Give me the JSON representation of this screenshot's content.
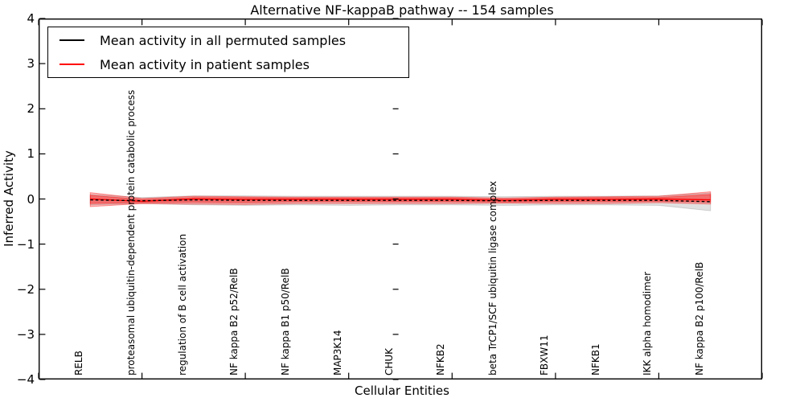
{
  "figure": {
    "title": "Alternative NF-kappaB pathway -- 154 samples",
    "xlabel": "Cellular Entities",
    "ylabel": "Inferred Activity"
  },
  "legend": {
    "items": [
      {
        "label": "Mean activity in all permuted samples",
        "color": "#000000"
      },
      {
        "label": "Mean activity in patient samples",
        "color": "#ff0000"
      }
    ]
  },
  "chart_data": {
    "type": "line",
    "title": "Alternative NF-kappaB pathway -- 154 samples",
    "xlabel": "Cellular Entities",
    "ylabel": "Inferred Activity",
    "xlim": [
      0,
      14
    ],
    "ylim": [
      -4,
      4
    ],
    "grid": false,
    "legend_position": "upper left",
    "y_tick_values": [
      4,
      3,
      2,
      1,
      0,
      -1,
      -2,
      -3,
      -4
    ],
    "y_tick_labels": [
      "4",
      "3",
      "2",
      "1",
      "0",
      "−1",
      "−2",
      "−3",
      "−4"
    ],
    "x_tick_positions": [
      0,
      2,
      4,
      6,
      8,
      10,
      12,
      14
    ],
    "x": [
      1,
      2,
      3,
      4,
      5,
      6,
      7,
      8,
      9,
      10,
      11,
      12,
      13
    ],
    "categories": [
      "RELB",
      "proteasomal ubiquitin-dependent protein catabolic process",
      "regulation of B cell activation",
      "NF kappa B2 p52/RelB",
      "NF kappa B1 p50/RelB",
      "MAP3K14",
      "CHUK",
      "NFKB2",
      "beta TrCP1/SCF ubiquitin ligase complex",
      "FBXW11",
      "NFKB1",
      "IKK alpha homodimer",
      "NF kappa B2 p100/RelB"
    ],
    "series": [
      {
        "name": "Mean activity in all permuted samples",
        "color": "#000000",
        "style": "dashed",
        "values": [
          -0.02,
          -0.04,
          -0.02,
          -0.03,
          -0.03,
          -0.03,
          -0.03,
          -0.03,
          -0.04,
          -0.03,
          -0.03,
          -0.03,
          -0.06
        ]
      },
      {
        "name": "Mean activity in patient samples",
        "color": "#ff0000",
        "style": "solid",
        "values": [
          0.0,
          -0.05,
          0.0,
          -0.01,
          -0.01,
          -0.01,
          -0.01,
          -0.01,
          -0.03,
          -0.01,
          -0.01,
          0.0,
          -0.02
        ]
      }
    ],
    "bands": [
      {
        "name": "permuted-confidence-band",
        "color": "#999999",
        "edge": "#9a9a9a",
        "opacity": 0.3,
        "upper": [
          0.1,
          0.03,
          0.07,
          0.07,
          0.06,
          0.06,
          0.06,
          0.06,
          0.05,
          0.06,
          0.06,
          0.07,
          0.13
        ],
        "lower": [
          -0.13,
          -0.1,
          -0.13,
          -0.14,
          -0.13,
          -0.14,
          -0.13,
          -0.13,
          -0.14,
          -0.13,
          -0.13,
          -0.14,
          -0.26
        ]
      },
      {
        "name": "patient-confidence-outer-band",
        "color": "#ff0000",
        "edge": "#ff0000",
        "opacity": 0.25,
        "upper": [
          0.14,
          0.01,
          0.06,
          0.05,
          0.04,
          0.04,
          0.04,
          0.04,
          0.02,
          0.04,
          0.05,
          0.06,
          0.16
        ],
        "lower": [
          -0.17,
          -0.1,
          -0.11,
          -0.12,
          -0.1,
          -0.1,
          -0.1,
          -0.1,
          -0.09,
          -0.1,
          -0.1,
          -0.08,
          -0.11
        ]
      },
      {
        "name": "patient-confidence-inner-band",
        "color": "#ff0000",
        "edge": "#ff0000",
        "opacity": 0.35,
        "upper": [
          0.08,
          -0.01,
          0.03,
          0.03,
          0.02,
          0.02,
          0.02,
          0.02,
          0.0,
          0.02,
          0.03,
          0.03,
          0.1
        ],
        "lower": [
          -0.1,
          -0.08,
          -0.07,
          -0.08,
          -0.06,
          -0.06,
          -0.06,
          -0.06,
          -0.07,
          -0.06,
          -0.06,
          -0.05,
          -0.07
        ]
      }
    ]
  }
}
